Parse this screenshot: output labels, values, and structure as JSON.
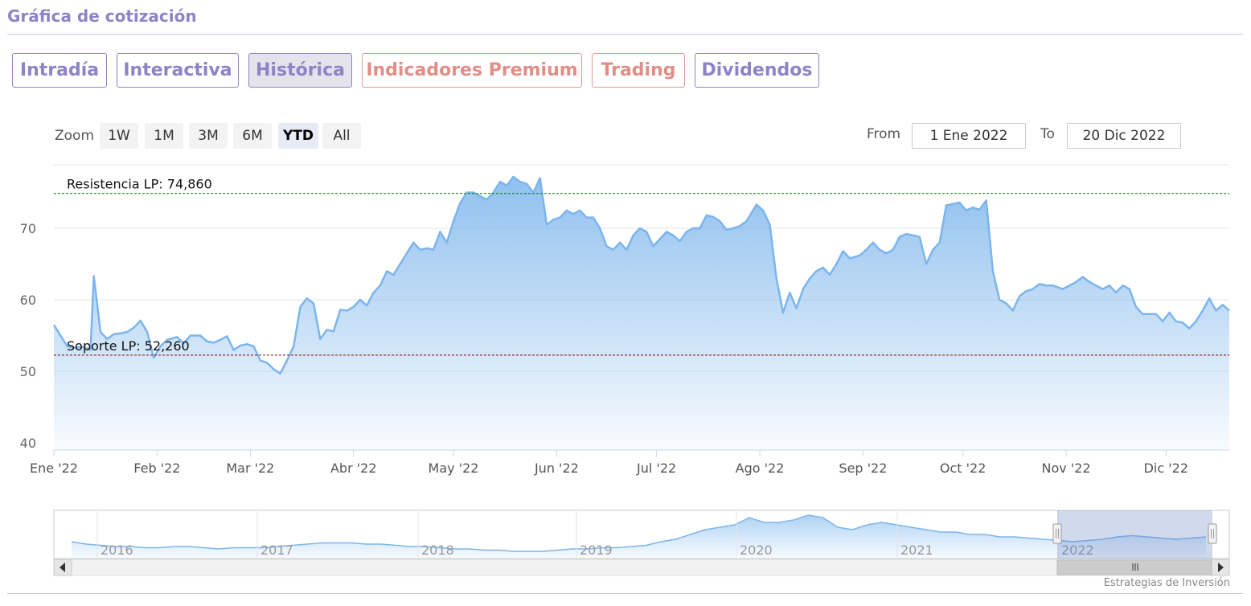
{
  "header": {
    "title": "Gráfica de cotización"
  },
  "tabs": [
    {
      "label": "Intradía",
      "variant": "normal"
    },
    {
      "label": "Interactiva",
      "variant": "normal"
    },
    {
      "label": "Histórica",
      "variant": "active"
    },
    {
      "label": "Indicadores Premium",
      "variant": "premium"
    },
    {
      "label": "Trading",
      "variant": "premium"
    },
    {
      "label": "Dividendos",
      "variant": "normal"
    }
  ],
  "zoom": {
    "label": "Zoom",
    "buttons": [
      "1W",
      "1M",
      "3M",
      "6M",
      "YTD",
      "All"
    ],
    "selected": "YTD"
  },
  "range": {
    "from_label": "From",
    "from_value": "1 Ene 2022",
    "to_label": "To",
    "to_value": "20 Dic 2022"
  },
  "colors": {
    "accent": "#8c84c6",
    "premium": "#e08f88",
    "series": "#7cb5ec",
    "resistance": "#008000",
    "support": "#8b0000"
  },
  "credit": "Estrategias de Inversión",
  "chart_data": {
    "type": "area",
    "title": "",
    "xlabel": "",
    "ylabel": "",
    "ylim": [
      40,
      80
    ],
    "yticks": [
      40,
      50,
      60,
      70
    ],
    "x_range": [
      "2022-01-01",
      "2022-12-20"
    ],
    "x_ticks": [
      {
        "label": "Ene '22",
        "date": "2022-01-01"
      },
      {
        "label": "Feb '22",
        "date": "2022-02-01"
      },
      {
        "label": "Mar '22",
        "date": "2022-03-01"
      },
      {
        "label": "Abr '22",
        "date": "2022-04-01"
      },
      {
        "label": "May '22",
        "date": "2022-05-01"
      },
      {
        "label": "Jun '22",
        "date": "2022-06-01"
      },
      {
        "label": "Jul '22",
        "date": "2022-07-01"
      },
      {
        "label": "Ago '22",
        "date": "2022-08-01"
      },
      {
        "label": "Sep '22",
        "date": "2022-09-01"
      },
      {
        "label": "Oct '22",
        "date": "2022-10-01"
      },
      {
        "label": "Nov '22",
        "date": "2022-11-01"
      },
      {
        "label": "Dic '22",
        "date": "2022-12-01"
      }
    ],
    "grid": true,
    "reference_lines": [
      {
        "label": "Resistencia LP: 74,860",
        "value": 74.86,
        "color": "#008000"
      },
      {
        "label": "Soporte LP: 52,260",
        "value": 52.26,
        "color": "#8b0000"
      }
    ],
    "series": [
      {
        "points": [
          [
            "2022-01-01",
            56.5
          ],
          [
            "2022-01-03",
            55.0
          ],
          [
            "2022-01-05",
            53.5
          ],
          [
            "2022-01-07",
            53.3
          ],
          [
            "2022-01-10",
            53.4
          ],
          [
            "2022-01-12",
            53.0
          ],
          [
            "2022-01-13",
            63.3
          ],
          [
            "2022-01-15",
            55.5
          ],
          [
            "2022-01-17",
            54.5
          ],
          [
            "2022-01-19",
            55.2
          ],
          [
            "2022-01-21",
            55.3
          ],
          [
            "2022-01-23",
            55.5
          ],
          [
            "2022-01-25",
            56.1
          ],
          [
            "2022-01-27",
            57.1
          ],
          [
            "2022-01-29",
            55.5
          ],
          [
            "2022-01-31",
            51.9
          ],
          [
            "2022-02-02",
            53.5
          ],
          [
            "2022-02-04",
            54.4
          ],
          [
            "2022-02-07",
            54.8
          ],
          [
            "2022-02-09",
            53.9
          ],
          [
            "2022-02-11",
            55.0
          ],
          [
            "2022-02-14",
            55.0
          ],
          [
            "2022-02-16",
            54.2
          ],
          [
            "2022-02-18",
            54.0
          ],
          [
            "2022-02-20",
            54.4
          ],
          [
            "2022-02-22",
            54.9
          ],
          [
            "2022-02-24",
            53.0
          ],
          [
            "2022-02-26",
            53.6
          ],
          [
            "2022-02-28",
            53.8
          ],
          [
            "2022-03-02",
            53.5
          ],
          [
            "2022-03-04",
            51.5
          ],
          [
            "2022-03-06",
            51.2
          ],
          [
            "2022-03-08",
            50.3
          ],
          [
            "2022-03-10",
            49.7
          ],
          [
            "2022-03-12",
            51.5
          ],
          [
            "2022-03-14",
            53.5
          ],
          [
            "2022-03-16",
            59.0
          ],
          [
            "2022-03-18",
            60.2
          ],
          [
            "2022-03-20",
            59.5
          ],
          [
            "2022-03-22",
            54.5
          ],
          [
            "2022-03-24",
            55.8
          ],
          [
            "2022-03-26",
            55.6
          ],
          [
            "2022-03-28",
            58.6
          ],
          [
            "2022-03-30",
            58.5
          ],
          [
            "2022-04-01",
            59.0
          ],
          [
            "2022-04-03",
            60.0
          ],
          [
            "2022-04-05",
            59.2
          ],
          [
            "2022-04-07",
            61.0
          ],
          [
            "2022-04-09",
            62.0
          ],
          [
            "2022-04-11",
            64.0
          ],
          [
            "2022-04-13",
            63.5
          ],
          [
            "2022-04-15",
            65.0
          ],
          [
            "2022-04-17",
            66.5
          ],
          [
            "2022-04-19",
            68.0
          ],
          [
            "2022-04-21",
            67.0
          ],
          [
            "2022-04-23",
            67.2
          ],
          [
            "2022-04-25",
            67.0
          ],
          [
            "2022-04-27",
            69.5
          ],
          [
            "2022-04-29",
            68.0
          ],
          [
            "2022-05-01",
            71.0
          ],
          [
            "2022-05-03",
            73.5
          ],
          [
            "2022-05-05",
            75.0
          ],
          [
            "2022-05-07",
            75.0
          ],
          [
            "2022-05-09",
            74.5
          ],
          [
            "2022-05-11",
            74.0
          ],
          [
            "2022-05-13",
            75.0
          ],
          [
            "2022-05-15",
            76.5
          ],
          [
            "2022-05-17",
            76.0
          ],
          [
            "2022-05-19",
            77.2
          ],
          [
            "2022-05-21",
            76.5
          ],
          [
            "2022-05-23",
            76.2
          ],
          [
            "2022-05-25",
            75.0
          ],
          [
            "2022-05-27",
            77.0
          ],
          [
            "2022-05-29",
            70.5
          ],
          [
            "2022-05-31",
            71.2
          ],
          [
            "2022-06-02",
            71.5
          ],
          [
            "2022-06-04",
            72.5
          ],
          [
            "2022-06-06",
            72.0
          ],
          [
            "2022-06-08",
            72.5
          ],
          [
            "2022-06-10",
            71.5
          ],
          [
            "2022-06-12",
            71.5
          ],
          [
            "2022-06-14",
            70.0
          ],
          [
            "2022-06-16",
            67.5
          ],
          [
            "2022-06-18",
            67.0
          ],
          [
            "2022-06-20",
            68.0
          ],
          [
            "2022-06-22",
            67.0
          ],
          [
            "2022-06-24",
            69.0
          ],
          [
            "2022-06-26",
            70.0
          ],
          [
            "2022-06-28",
            69.5
          ],
          [
            "2022-06-30",
            67.5
          ],
          [
            "2022-07-02",
            68.5
          ],
          [
            "2022-07-04",
            69.5
          ],
          [
            "2022-07-06",
            69.0
          ],
          [
            "2022-07-08",
            68.2
          ],
          [
            "2022-07-10",
            69.5
          ],
          [
            "2022-07-12",
            70.0
          ],
          [
            "2022-07-14",
            70.0
          ],
          [
            "2022-07-16",
            71.8
          ],
          [
            "2022-07-18",
            71.6
          ],
          [
            "2022-07-20",
            71.0
          ],
          [
            "2022-07-22",
            69.8
          ],
          [
            "2022-07-24",
            70.0
          ],
          [
            "2022-07-26",
            70.3
          ],
          [
            "2022-07-28",
            71.0
          ],
          [
            "2022-07-31",
            73.3
          ],
          [
            "2022-08-02",
            72.5
          ],
          [
            "2022-08-04",
            70.5
          ],
          [
            "2022-08-06",
            63.0
          ],
          [
            "2022-08-08",
            58.2
          ],
          [
            "2022-08-10",
            61.0
          ],
          [
            "2022-08-12",
            58.8
          ],
          [
            "2022-08-14",
            61.5
          ],
          [
            "2022-08-16",
            63.0
          ],
          [
            "2022-08-18",
            64.0
          ],
          [
            "2022-08-20",
            64.5
          ],
          [
            "2022-08-22",
            63.5
          ],
          [
            "2022-08-24",
            65.0
          ],
          [
            "2022-08-26",
            66.8
          ],
          [
            "2022-08-28",
            65.8
          ],
          [
            "2022-08-31",
            66.2
          ],
          [
            "2022-09-02",
            67.0
          ],
          [
            "2022-09-04",
            68.0
          ],
          [
            "2022-09-06",
            67.0
          ],
          [
            "2022-09-08",
            66.5
          ],
          [
            "2022-09-10",
            67.0
          ],
          [
            "2022-09-12",
            68.8
          ],
          [
            "2022-09-14",
            69.2
          ],
          [
            "2022-09-16",
            69.0
          ],
          [
            "2022-09-18",
            68.8
          ],
          [
            "2022-09-20",
            65.0
          ],
          [
            "2022-09-22",
            67.0
          ],
          [
            "2022-09-24",
            68.0
          ],
          [
            "2022-09-26",
            73.2
          ],
          [
            "2022-09-28",
            73.4
          ],
          [
            "2022-09-30",
            73.6
          ],
          [
            "2022-10-02",
            72.5
          ],
          [
            "2022-10-04",
            72.9
          ],
          [
            "2022-10-06",
            72.6
          ],
          [
            "2022-10-08",
            73.9
          ],
          [
            "2022-10-10",
            64.0
          ],
          [
            "2022-10-12",
            60.0
          ],
          [
            "2022-10-14",
            59.5
          ],
          [
            "2022-10-16",
            58.5
          ],
          [
            "2022-10-18",
            60.5
          ],
          [
            "2022-10-20",
            61.2
          ],
          [
            "2022-10-22",
            61.5
          ],
          [
            "2022-10-24",
            62.2
          ],
          [
            "2022-10-26",
            62.0
          ],
          [
            "2022-10-28",
            62.0
          ],
          [
            "2022-10-31",
            61.5
          ],
          [
            "2022-11-02",
            62.0
          ],
          [
            "2022-11-04",
            62.5
          ],
          [
            "2022-11-06",
            63.2
          ],
          [
            "2022-11-08",
            62.5
          ],
          [
            "2022-11-10",
            62.0
          ],
          [
            "2022-11-12",
            61.5
          ],
          [
            "2022-11-14",
            62.0
          ],
          [
            "2022-11-16",
            61.0
          ],
          [
            "2022-11-18",
            62.0
          ],
          [
            "2022-11-20",
            61.5
          ],
          [
            "2022-11-22",
            59.0
          ],
          [
            "2022-11-24",
            58.0
          ],
          [
            "2022-11-26",
            58.0
          ],
          [
            "2022-11-28",
            58.0
          ],
          [
            "2022-11-30",
            57.0
          ],
          [
            "2022-12-02",
            58.2
          ],
          [
            "2022-12-04",
            57.0
          ],
          [
            "2022-12-06",
            56.8
          ],
          [
            "2022-12-08",
            56.0
          ],
          [
            "2022-12-10",
            57.0
          ],
          [
            "2022-12-12",
            58.5
          ],
          [
            "2022-12-14",
            60.2
          ],
          [
            "2022-12-16",
            58.5
          ],
          [
            "2022-12-18",
            59.3
          ],
          [
            "2022-12-20",
            58.5
          ]
        ]
      }
    ],
    "navigator": {
      "labels": [
        "2016",
        "2017",
        "2018",
        "2019",
        "2020",
        "2021",
        "2022"
      ],
      "values": [
        57,
        56,
        55.5,
        55,
        55,
        54.5,
        54.5,
        55,
        55,
        54.5,
        54,
        54.5,
        54.5,
        54.5,
        55,
        55.5,
        56,
        56.5,
        56.5,
        56.5,
        56,
        56,
        55.5,
        55,
        55,
        54.5,
        54,
        54,
        53.5,
        53.5,
        53,
        53,
        53,
        53.5,
        54,
        54,
        54.5,
        54.5,
        55,
        55.5,
        57,
        58,
        60,
        62,
        63,
        64,
        67,
        65,
        65,
        66,
        68,
        67,
        63,
        62,
        64,
        65,
        64,
        63,
        62,
        61,
        61,
        60,
        60,
        59,
        59,
        58.5,
        58,
        57.5,
        57,
        57.5,
        58,
        59,
        59.5,
        59,
        58.5,
        58,
        58.5,
        59
      ],
      "selected_label": "2022"
    }
  }
}
